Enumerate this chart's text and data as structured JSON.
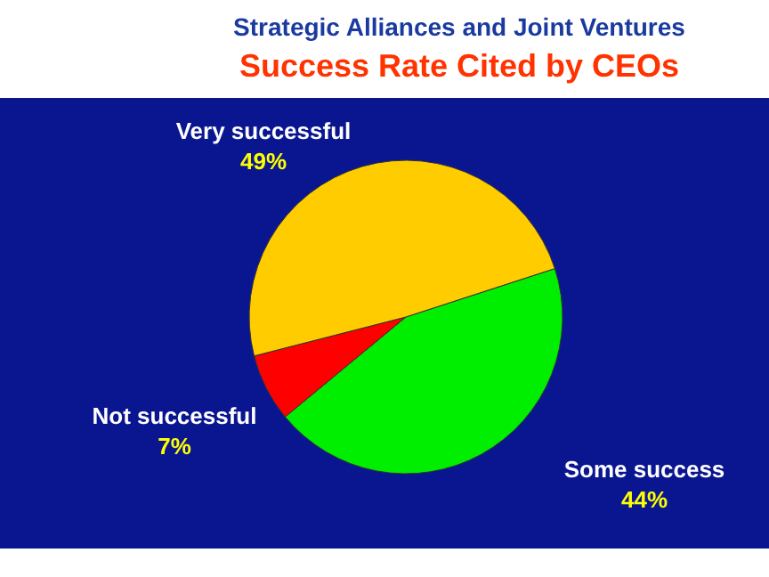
{
  "chart_data": {
    "type": "pie",
    "title": "Strategic Alliances and Joint Ventures",
    "subtitle": "Success Rate Cited by CEOs",
    "categories": [
      "Some success",
      "Not successful",
      "Very successful"
    ],
    "values": [
      44,
      7,
      49
    ],
    "colors": [
      "#00ee00",
      "#ff0000",
      "#ffcc00"
    ],
    "value_labels": [
      "44%",
      "7%",
      "49%"
    ]
  }
}
